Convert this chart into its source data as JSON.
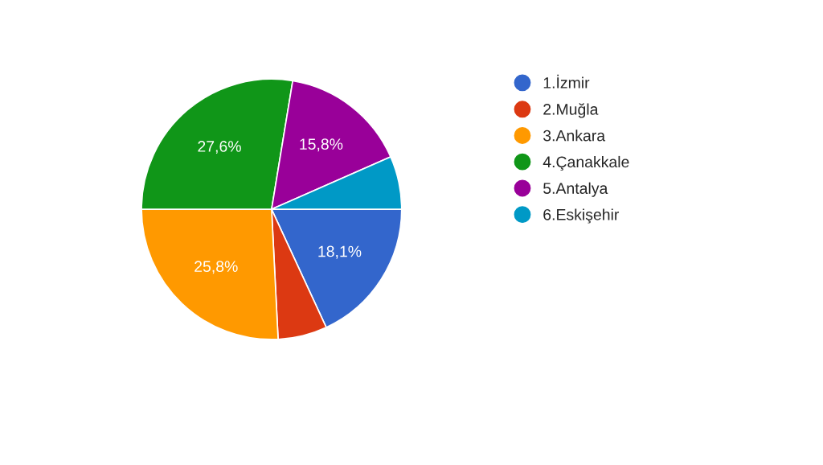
{
  "chart_data": {
    "type": "pie",
    "categories": [
      "1.İzmir",
      "2.Muğla",
      "3.Ankara",
      "4.Çanakkale",
      "5.Antalya",
      "6.Eskişehir"
    ],
    "values": [
      18.1,
      6.1,
      25.8,
      27.6,
      15.8,
      6.6
    ],
    "value_labels": [
      "18,1%",
      null,
      "25,8%",
      "27,6%",
      "15,8%",
      null
    ],
    "colors": [
      "#3366cc",
      "#dc3912",
      "#ff9900",
      "#109618",
      "#990099",
      "#0099c6"
    ],
    "legend": "right"
  }
}
